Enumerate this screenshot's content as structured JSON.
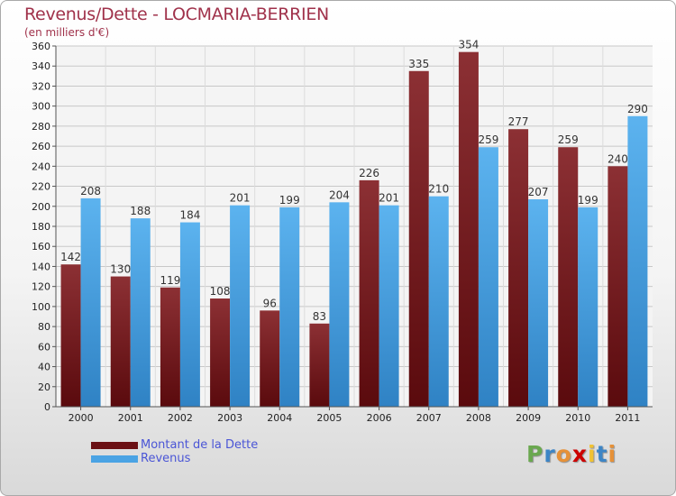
{
  "title": "Revenus/Dette - LOCMARIA-BERRIEN",
  "subtitle": "(en milliers d'€)",
  "colors": {
    "dette": "#7a1f26",
    "revenus": "#4aa3e4",
    "title": "#a0324b",
    "legend_text": "#4a55d6"
  },
  "legend": [
    {
      "label": "Montant de la Dette",
      "color": "#6b1014"
    },
    {
      "label": "Revenus",
      "color": "#4aa3e4"
    }
  ],
  "logo": {
    "text": "Proxiti"
  },
  "chart_data": {
    "type": "bar",
    "categories": [
      "2000",
      "2001",
      "2002",
      "2003",
      "2004",
      "2005",
      "2006",
      "2007",
      "2008",
      "2009",
      "2010",
      "2011"
    ],
    "series": [
      {
        "name": "Montant de la Dette",
        "values": [
          142,
          130,
          119,
          108,
          96,
          83,
          226,
          335,
          354,
          277,
          259,
          240
        ]
      },
      {
        "name": "Revenus",
        "values": [
          208,
          188,
          184,
          201,
          199,
          204,
          201,
          210,
          259,
          207,
          199,
          290
        ]
      }
    ],
    "title": "Revenus/Dette - LOCMARIA-BERRIEN",
    "ylabel": "(en milliers d'€)",
    "ylim": [
      0,
      360
    ],
    "yticks": [
      0,
      20,
      40,
      60,
      80,
      100,
      120,
      140,
      160,
      180,
      200,
      220,
      240,
      260,
      280,
      300,
      320,
      340,
      360
    ],
    "grid": true,
    "legend_position": "bottom-left"
  }
}
